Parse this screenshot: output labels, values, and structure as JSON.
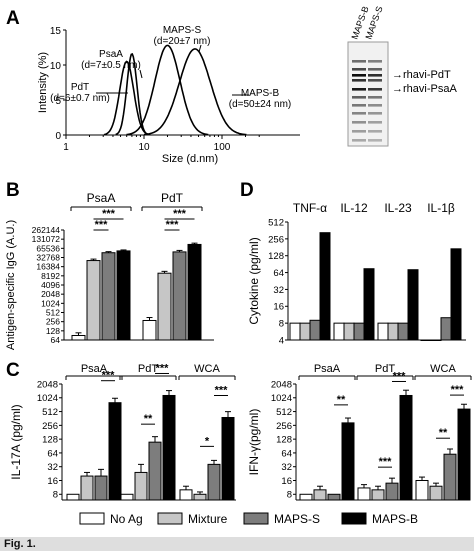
{
  "colors": {
    "no_ag": "#ffffff",
    "mixture": "#c6c6c6",
    "maps_s": "#7d7d7d",
    "maps_b": "#000000"
  },
  "panel_labels": [
    "A",
    "B",
    "C",
    "D"
  ],
  "caption_fragment": "Fig. 1.",
  "legend": {
    "items": [
      {
        "label": "No Ag",
        "color_key": "no_ag"
      },
      {
        "label": "Mixture",
        "color_key": "mixture"
      },
      {
        "label": "MAPS-S",
        "color_key": "maps_s"
      },
      {
        "label": "MAPS-B",
        "color_key": "maps_b"
      }
    ]
  },
  "gel": {
    "lanes": [
      "MAPS-B",
      "MAPS-S"
    ],
    "band_labels": [
      "rhavi-PdT",
      "rhavi-PsaA"
    ]
  },
  "chart_data": [
    {
      "id": "A",
      "type": "line",
      "xlabel": "Size (d.nm)",
      "ylabel": "Intensity (%)",
      "x_scale": "log",
      "xlim": [
        1,
        1000
      ],
      "x_ticks": [
        "1",
        "10",
        "100"
      ],
      "ylim": [
        0,
        15
      ],
      "y_ticks": [
        "0",
        "5",
        "10",
        "15"
      ],
      "series": [
        {
          "name": "PdT",
          "annotation": "(d=6±0.7 nm)",
          "peak_x": 6,
          "peak_y": 10.5,
          "sigma": 0.09
        },
        {
          "name": "PsaA",
          "annotation": "(d=7±0.5 nm)",
          "peak_x": 7,
          "peak_y": 11.6,
          "sigma": 0.065
        },
        {
          "name": "MAPS-S",
          "annotation": "(d=20±7 nm)",
          "peak_x": 20,
          "peak_y": 12.8,
          "sigma": 0.16
        },
        {
          "name": "MAPS-B",
          "annotation": "(d=50±24 nm)",
          "peak_x": 45,
          "peak_y": 12.3,
          "sigma": 0.2
        }
      ]
    },
    {
      "id": "B",
      "type": "bar",
      "ylabel": "Antigen-specific IgG (A.U.)",
      "y_scale": "log2",
      "y_ticks": [
        "64",
        "128",
        "256",
        "512",
        "1024",
        "2048",
        "4096",
        "8192",
        "16384",
        "32768",
        "65536",
        "131072",
        "262144"
      ],
      "ylim": [
        64,
        262144
      ],
      "groups": [
        {
          "label": "PsaA",
          "values": [
            90,
            26000,
            47000,
            54000
          ],
          "errors": [
            20,
            3000,
            4000,
            4000
          ],
          "sig": [
            "***",
            "***"
          ]
        },
        {
          "label": "PdT",
          "values": [
            280,
            10000,
            50000,
            88000
          ],
          "errors": [
            70,
            1500,
            6000,
            9000
          ],
          "sig": [
            "***",
            "***"
          ]
        }
      ]
    },
    {
      "id": "C-left",
      "type": "bar",
      "ylabel": "IL-17A (pg/ml)",
      "y_scale": "log2",
      "y_ticks": [
        "8",
        "16",
        "32",
        "64",
        "128",
        "256",
        "512",
        "1024",
        "2048"
      ],
      "ylim": [
        6,
        2048
      ],
      "groups": [
        {
          "label": "PsaA",
          "values": [
            8,
            20,
            20,
            800
          ],
          "errors": [
            0,
            4,
            8,
            200
          ],
          "sig": [
            "***"
          ]
        },
        {
          "label": "PdT",
          "values": [
            8,
            24,
            110,
            1150
          ],
          "errors": [
            0,
            12,
            35,
            320
          ],
          "sig": [
            "**",
            "***"
          ]
        },
        {
          "label": "WCA",
          "values": [
            10,
            8,
            36,
            380
          ],
          "errors": [
            2,
            1,
            8,
            130
          ],
          "sig": [
            "*",
            "***"
          ]
        }
      ]
    },
    {
      "id": "C-right",
      "type": "bar",
      "ylabel": "IFN-γ(pg/ml)",
      "y_scale": "log2",
      "y_ticks": [
        "8",
        "16",
        "32",
        "64",
        "128",
        "256",
        "512",
        "1024",
        "2048"
      ],
      "ylim": [
        6,
        2048
      ],
      "groups": [
        {
          "label": "PsaA",
          "values": [
            8,
            10,
            8,
            290
          ],
          "errors": [
            0,
            2,
            0,
            80
          ],
          "sig": [
            "**"
          ]
        },
        {
          "label": "PdT",
          "values": [
            11,
            10,
            14,
            1150
          ],
          "errors": [
            2,
            2,
            4,
            350
          ],
          "sig": [
            "***",
            "***"
          ]
        },
        {
          "label": "WCA",
          "values": [
            16,
            12,
            60,
            580
          ],
          "errors": [
            3,
            2,
            18,
            160
          ],
          "sig": [
            "**",
            "***"
          ]
        }
      ]
    },
    {
      "id": "D",
      "type": "bar",
      "ylabel": "Cytokine (pg/ml)",
      "y_scale": "log2",
      "y_ticks": [
        "4",
        "8",
        "16",
        "32",
        "64",
        "128",
        "256",
        "512"
      ],
      "ylim": [
        4,
        512
      ],
      "groups": [
        {
          "label": "TNF-α",
          "values": [
            8,
            8,
            9,
            330
          ],
          "errors": [
            0,
            0,
            0,
            0
          ]
        },
        {
          "label": "IL-12",
          "values": [
            8,
            8,
            8,
            75
          ],
          "errors": [
            0,
            0,
            0,
            0
          ]
        },
        {
          "label": "IL-23",
          "values": [
            8,
            8,
            8,
            72
          ],
          "errors": [
            0,
            0,
            0,
            0
          ]
        },
        {
          "label": "IL-1β",
          "values": [
            4,
            4,
            10,
            170
          ],
          "errors": [
            0,
            0,
            0,
            0
          ]
        }
      ]
    }
  ]
}
